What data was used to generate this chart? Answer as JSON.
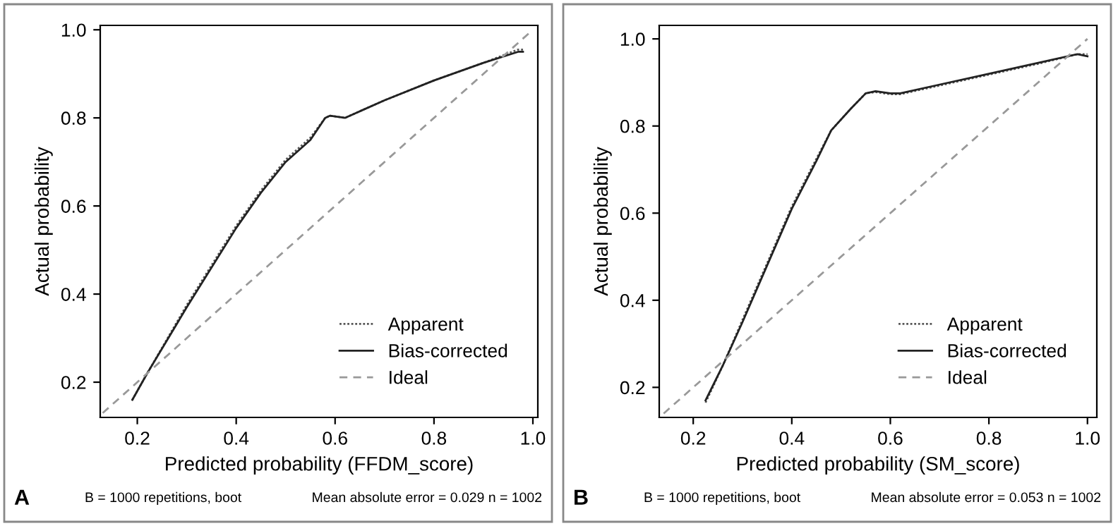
{
  "chart_data": [
    {
      "type": "line",
      "title": "A",
      "xlabel": "Predicted probability (FFDM_score)",
      "ylabel": "Actual probability",
      "xlim": [
        0.125,
        1.01
      ],
      "ylim": [
        0.12,
        1.01
      ],
      "xticks": [
        0.2,
        0.4,
        0.6,
        0.8,
        {
          "value": 1,
          "label": "1.0"
        }
      ],
      "yticks": [
        0.2,
        0.4,
        0.6,
        0.8,
        {
          "value": 1,
          "label": "1.0"
        }
      ],
      "grid": false,
      "legend": "bottom right",
      "marker": "none",
      "series": [
        {
          "name": "Apparent",
          "color": "#555555",
          "line_style": "dotted",
          "x": [
            0.19,
            0.22,
            0.3,
            0.4,
            0.45,
            0.5,
            0.55,
            0.58,
            0.59,
            0.62,
            0.7,
            0.8,
            0.9,
            0.97,
            0.98
          ],
          "values": [
            0.16,
            0.22,
            0.375,
            0.555,
            0.635,
            0.705,
            0.755,
            0.8,
            0.805,
            0.8,
            0.84,
            0.885,
            0.925,
            0.955,
            0.955
          ]
        },
        {
          "name": "Bias-corrected",
          "color": "#222222",
          "line_style": "solid",
          "x": [
            0.19,
            0.22,
            0.3,
            0.4,
            0.45,
            0.5,
            0.55,
            0.58,
            0.59,
            0.62,
            0.7,
            0.8,
            0.9,
            0.97,
            0.98
          ],
          "values": [
            0.16,
            0.22,
            0.37,
            0.55,
            0.63,
            0.7,
            0.75,
            0.8,
            0.805,
            0.8,
            0.84,
            0.885,
            0.925,
            0.95,
            0.95
          ]
        },
        {
          "name": "Ideal",
          "color": "#999999",
          "line_style": "dashed",
          "x": [
            0.13,
            1.0
          ],
          "values": [
            0.13,
            1.0
          ]
        }
      ],
      "annotations": [
        "B = 1000 repetitions, boot",
        "Mean absolute error = 0.029 n = 1002"
      ]
    },
    {
      "type": "line",
      "title": "B",
      "xlabel": "Predicted probability (SM_score)",
      "ylabel": "Actual probability",
      "xlim": [
        0.131,
        1.019
      ],
      "ylim": [
        0.131,
        1.031
      ],
      "xticks": [
        0.2,
        0.4,
        0.6,
        0.8,
        {
          "value": 1,
          "label": "1.0"
        }
      ],
      "yticks": [
        0.2,
        0.4,
        0.6,
        0.8,
        {
          "value": 1,
          "label": "1.0"
        }
      ],
      "grid": false,
      "legend": "bottom right",
      "marker": "none",
      "series": [
        {
          "name": "Apparent",
          "color": "#555555",
          "line_style": "dotted",
          "x": [
            0.225,
            0.26,
            0.3,
            0.35,
            0.4,
            0.45,
            0.48,
            0.52,
            0.55,
            0.57,
            0.6,
            0.62,
            0.7,
            0.8,
            0.9,
            0.98,
            1.0
          ],
          "values": [
            0.165,
            0.25,
            0.355,
            0.485,
            0.615,
            0.725,
            0.79,
            0.84,
            0.875,
            0.878,
            0.873,
            0.873,
            0.893,
            0.918,
            0.943,
            0.965,
            0.965
          ]
        },
        {
          "name": "Bias-corrected",
          "color": "#222222",
          "line_style": "solid",
          "x": [
            0.225,
            0.26,
            0.3,
            0.35,
            0.4,
            0.45,
            0.48,
            0.52,
            0.55,
            0.57,
            0.6,
            0.62,
            0.7,
            0.8,
            0.9,
            0.98,
            1.0
          ],
          "values": [
            0.17,
            0.25,
            0.35,
            0.48,
            0.61,
            0.72,
            0.79,
            0.84,
            0.875,
            0.88,
            0.875,
            0.875,
            0.895,
            0.92,
            0.945,
            0.965,
            0.96
          ]
        },
        {
          "name": "Ideal",
          "color": "#999999",
          "line_style": "dashed",
          "x": [
            0.14,
            1.0
          ],
          "values": [
            0.14,
            1.0
          ]
        }
      ],
      "annotations": [
        "B = 1000 repetitions, boot",
        "Mean absolute error = 0.053 n = 1002"
      ]
    }
  ]
}
